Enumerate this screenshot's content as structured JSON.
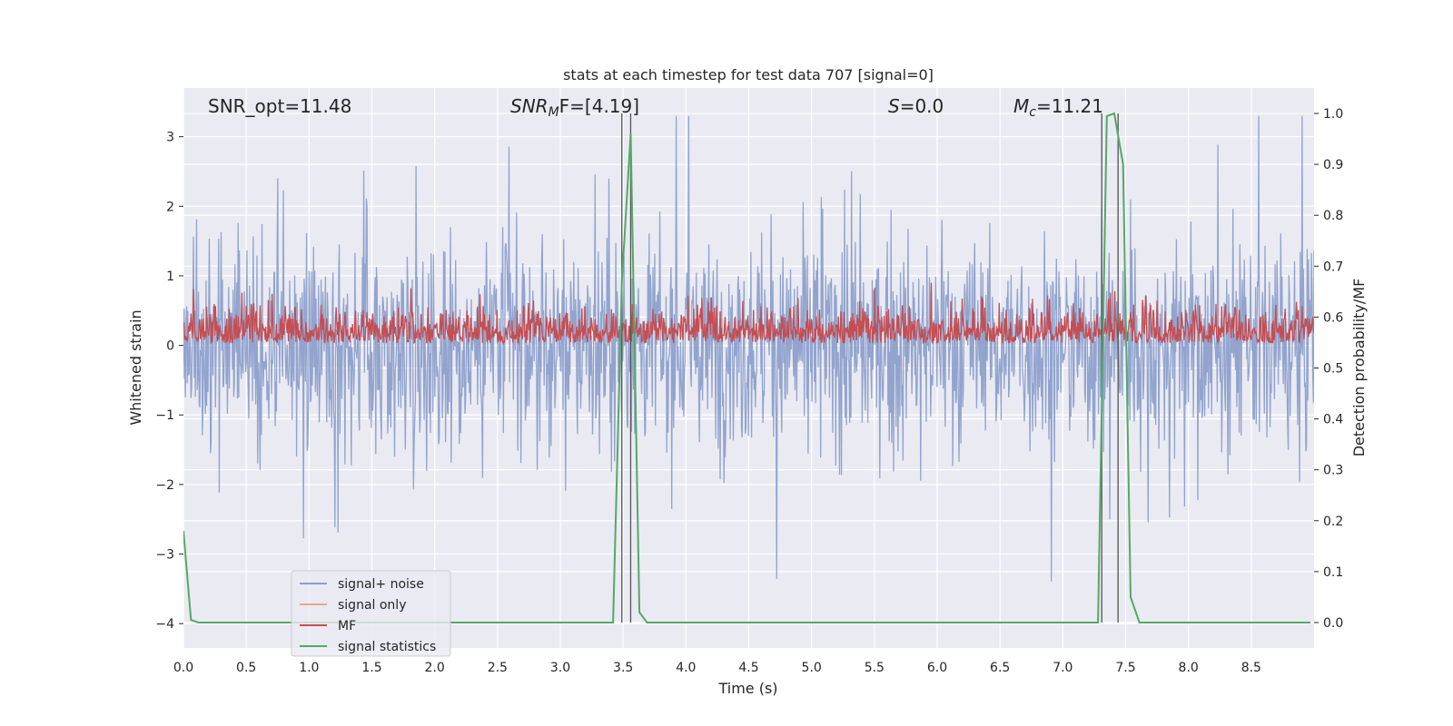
{
  "chart_data": {
    "type": "line",
    "title": "stats at each timestep for test data 707 [signal=0]",
    "xlabel": "Time (s)",
    "ylabel": "Whitened strain",
    "ylabel_right": "Detection probability/MF",
    "xlim": [
      0.0,
      9.0
    ],
    "ylim": [
      -4.35,
      3.7
    ],
    "ylim_right": [
      -0.05,
      1.05
    ],
    "xticks": [
      "0.0",
      "0.5",
      "1.0",
      "1.5",
      "2.0",
      "2.5",
      "3.0",
      "3.5",
      "4.0",
      "4.5",
      "5.0",
      "5.5",
      "6.0",
      "6.5",
      "7.0",
      "7.5",
      "8.0",
      "8.5"
    ],
    "yticks": [
      "3",
      "2",
      "1",
      "0",
      "−1",
      "−2",
      "−3",
      "−4"
    ],
    "yticks_right": [
      "1.0",
      "0.9",
      "0.8",
      "0.7",
      "0.6",
      "0.5",
      "0.4",
      "0.3",
      "0.2",
      "0.1",
      "0.0"
    ],
    "annotations": {
      "snr_opt": "SNR_opt=11.48",
      "snr_mf_prefix": "SNR",
      "snr_mf_sub": "M",
      "snr_mf_suffix": "F=[4.19]",
      "s_prefix": "S",
      "s_suffix": "=0.0",
      "mc_prefix": "M",
      "mc_sub": "c",
      "mc_suffix": "=11.21"
    },
    "legend": {
      "placement": "lower-left",
      "entries": [
        {
          "label": "signal+ noise",
          "color": "#8da0cb"
        },
        {
          "label": "signal only",
          "color": "#e9a78a"
        },
        {
          "label": "MF",
          "color": "#c44e52"
        },
        {
          "label": "signal statistics",
          "color": "#55a868"
        }
      ]
    },
    "series": [
      {
        "name": "signal statistics",
        "axis": "right",
        "color": "#55a868",
        "x": [
          0.0,
          0.06,
          0.12,
          3.42,
          3.49,
          3.56,
          3.63,
          3.69,
          7.28,
          7.35,
          7.41,
          7.48,
          7.54,
          7.61,
          8.97
        ],
        "y": [
          0.18,
          0.005,
          0.0,
          0.0,
          0.67,
          0.96,
          0.02,
          0.0,
          0.0,
          0.995,
          1.0,
          0.9,
          0.05,
          0.0,
          0.0
        ]
      },
      {
        "name": "signal+ noise",
        "axis": "left",
        "color": "#8da0cb",
        "envelope_range": [
          -3.4,
          3.3
        ],
        "note": "dense noise trace"
      },
      {
        "name": "MF",
        "axis": "left",
        "color": "#c44e52",
        "envelope_range": [
          0.0,
          1.0
        ],
        "note": "dense matched-filter trace"
      }
    ],
    "vertical_lines_x": [
      3.49,
      3.56,
      7.31,
      7.44
    ],
    "grid": true
  }
}
